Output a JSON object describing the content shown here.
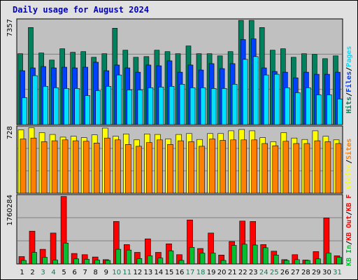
{
  "title": "Daily usage for August 2024",
  "colors": {
    "background": "#e0e0e0",
    "plot_bg": "#c0c0c0",
    "hits": "#00805c",
    "files": "#0040ff",
    "pages": "#00e0ff",
    "visits": "#ffff00",
    "sites": "#ff8000",
    "kb_in": "#00c030",
    "kb_out": "#ff0000",
    "kb_f": "#ff0000",
    "weekend_day": "#00805c",
    "title": "#0000c0"
  },
  "chart_data": [
    {
      "type": "bar",
      "ylabel": "7357",
      "ymax": 7357,
      "legend_position": "right",
      "series": [
        {
          "name": "Hits",
          "values": [
            5000,
            6850,
            5050,
            4550,
            5350,
            5100,
            5150,
            4750,
            5000,
            6800,
            5250,
            4750,
            4800,
            5250,
            5150,
            5000,
            5550,
            5000,
            5000,
            4850,
            5150,
            7350,
            7350,
            6850,
            5250,
            5350,
            4750,
            5000,
            4950,
            4650,
            4850
          ]
        },
        {
          "name": "Files",
          "values": [
            3800,
            4000,
            4100,
            4000,
            4050,
            4000,
            4050,
            4400,
            3800,
            4200,
            4000,
            3700,
            4200,
            4150,
            4500,
            3700,
            4200,
            3850,
            4300,
            3950,
            4300,
            6000,
            6050,
            4000,
            3750,
            3700,
            3300,
            3700,
            3550,
            3550,
            3700
          ]
        },
        {
          "name": "Pages",
          "values": [
            1900,
            3450,
            2700,
            2600,
            2550,
            2550,
            2050,
            2400,
            2700,
            3500,
            2450,
            2450,
            2600,
            2650,
            2700,
            2850,
            2600,
            2600,
            2550,
            2550,
            2850,
            4600,
            4800,
            3500,
            3550,
            2600,
            2250,
            2600,
            2100,
            2100,
            1800
          ]
        }
      ]
    },
    {
      "type": "bar",
      "ylabel": "728",
      "ymax": 728,
      "legend_position": "right",
      "series": [
        {
          "name": "Visits",
          "values": [
            700,
            725,
            670,
            650,
            620,
            630,
            615,
            645,
            720,
            630,
            655,
            590,
            655,
            650,
            600,
            650,
            660,
            595,
            660,
            660,
            690,
            705,
            690,
            615,
            570,
            670,
            610,
            595,
            690,
            630,
            590
          ]
        },
        {
          "name": "Sites",
          "values": [
            600,
            610,
            570,
            580,
            590,
            580,
            575,
            555,
            610,
            590,
            540,
            520,
            560,
            590,
            540,
            580,
            570,
            520,
            600,
            585,
            590,
            590,
            590,
            550,
            525,
            575,
            550,
            550,
            580,
            570,
            550
          ]
        }
      ]
    },
    {
      "type": "bar",
      "ylabel": "1760284",
      "ymax": 1760284,
      "legend_position": "right",
      "series": [
        {
          "name": "KB F",
          "values": []
        },
        {
          "name": "KB Out",
          "values": [
            190000,
            850000,
            380000,
            800000,
            1750000,
            270000,
            240000,
            180000,
            110000,
            1100000,
            500000,
            300000,
            650000,
            300000,
            520000,
            240000,
            1140000,
            400000,
            800000,
            230000,
            580000,
            1110000,
            1100000,
            500000,
            330000,
            110000,
            240000,
            100000,
            320000,
            1190000,
            210000
          ]
        },
        {
          "name": "KB In",
          "values": [
            90000,
            300000,
            170000,
            100000,
            540000,
            130000,
            120000,
            100000,
            90000,
            380000,
            360000,
            140000,
            210000,
            150000,
            340000,
            90000,
            430000,
            280000,
            280000,
            90000,
            480000,
            510000,
            490000,
            420000,
            230000,
            90000,
            110000,
            90000,
            130000,
            280000,
            170000
          ]
        }
      ]
    }
  ],
  "legends": {
    "panel1": [
      "Hits",
      "/",
      "Files",
      "/",
      "Pages"
    ],
    "panel2": [
      "Visits",
      "/",
      "Sites"
    ],
    "panel3": [
      "KB In",
      "/",
      "KB Out",
      "/",
      "KB F"
    ]
  },
  "x_axis": {
    "labels": [
      "1",
      "2",
      "3",
      "4",
      "5",
      "6",
      "7",
      "8",
      "9",
      "10",
      "11",
      "12",
      "13",
      "14",
      "15",
      "16",
      "17",
      "18",
      "19",
      "20",
      "21",
      "22",
      "23",
      "24",
      "25",
      "26",
      "27",
      "28",
      "29",
      "30",
      "31"
    ],
    "weekend_days": [
      3,
      4,
      10,
      11,
      17,
      18,
      24,
      25,
      31
    ]
  }
}
